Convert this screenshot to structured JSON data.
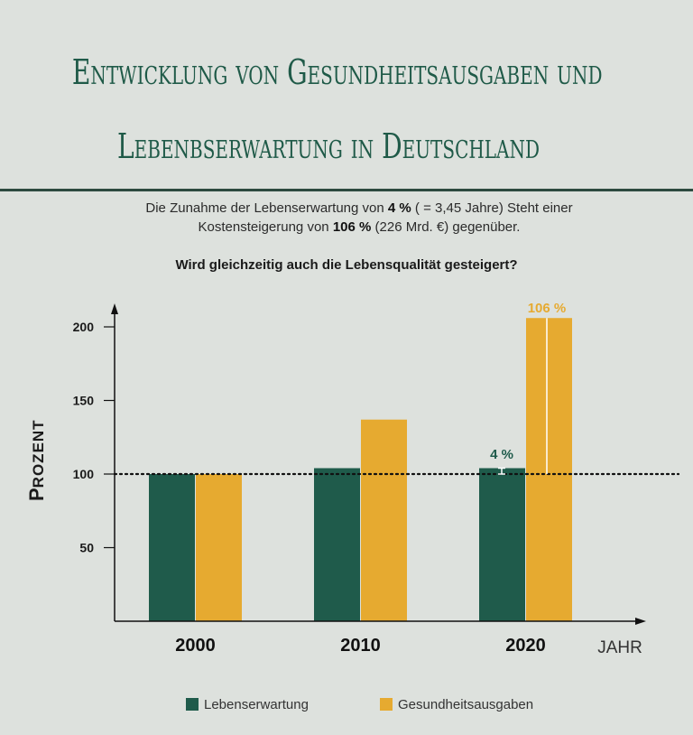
{
  "title_line1": "Entwicklung von Gesundheitsausgaben und",
  "title_line2": "Lebenbserwartung in Deutschland",
  "subtitle": {
    "l1_pre": "Die Zunahme der Lebenserwartung von ",
    "l1_bold": "4 %",
    "l1_post": " ( = 3,45 Jahre) Steht einer",
    "l2_pre": "Kostensteigerung von ",
    "l2_bold": "106 %",
    "l2_post": " (226 Mrd. €) gegenüber."
  },
  "question": "Wird gleichzeitig auch die Lebensqualität gesteigert?",
  "colors": {
    "lebenserwartung": "#1f5b4b",
    "gesundheitsausgaben": "#e6aa30",
    "title": "#1f5a48"
  },
  "chart_data": {
    "type": "bar",
    "categories": [
      "2000",
      "2010",
      "2020"
    ],
    "series": [
      {
        "name": "Lebenserwartung",
        "values": [
          100,
          104,
          104
        ]
      },
      {
        "name": "Gesundheitsausgaben",
        "values": [
          100,
          137,
          206
        ]
      }
    ],
    "ylabel_first": "P",
    "ylabel_rest": "ROZENT",
    "xlabel": "JAHR",
    "yticks": [
      50,
      100,
      150,
      200
    ],
    "ylim": [
      0,
      215
    ],
    "reference_line": 100,
    "annotations": [
      {
        "text": "4 %",
        "category": "2020",
        "series": "Lebenserwartung"
      },
      {
        "text": "106 %",
        "category": "2020",
        "series": "Gesundheitsausgaben"
      }
    ],
    "grid": false,
    "legend_position": "bottom"
  }
}
